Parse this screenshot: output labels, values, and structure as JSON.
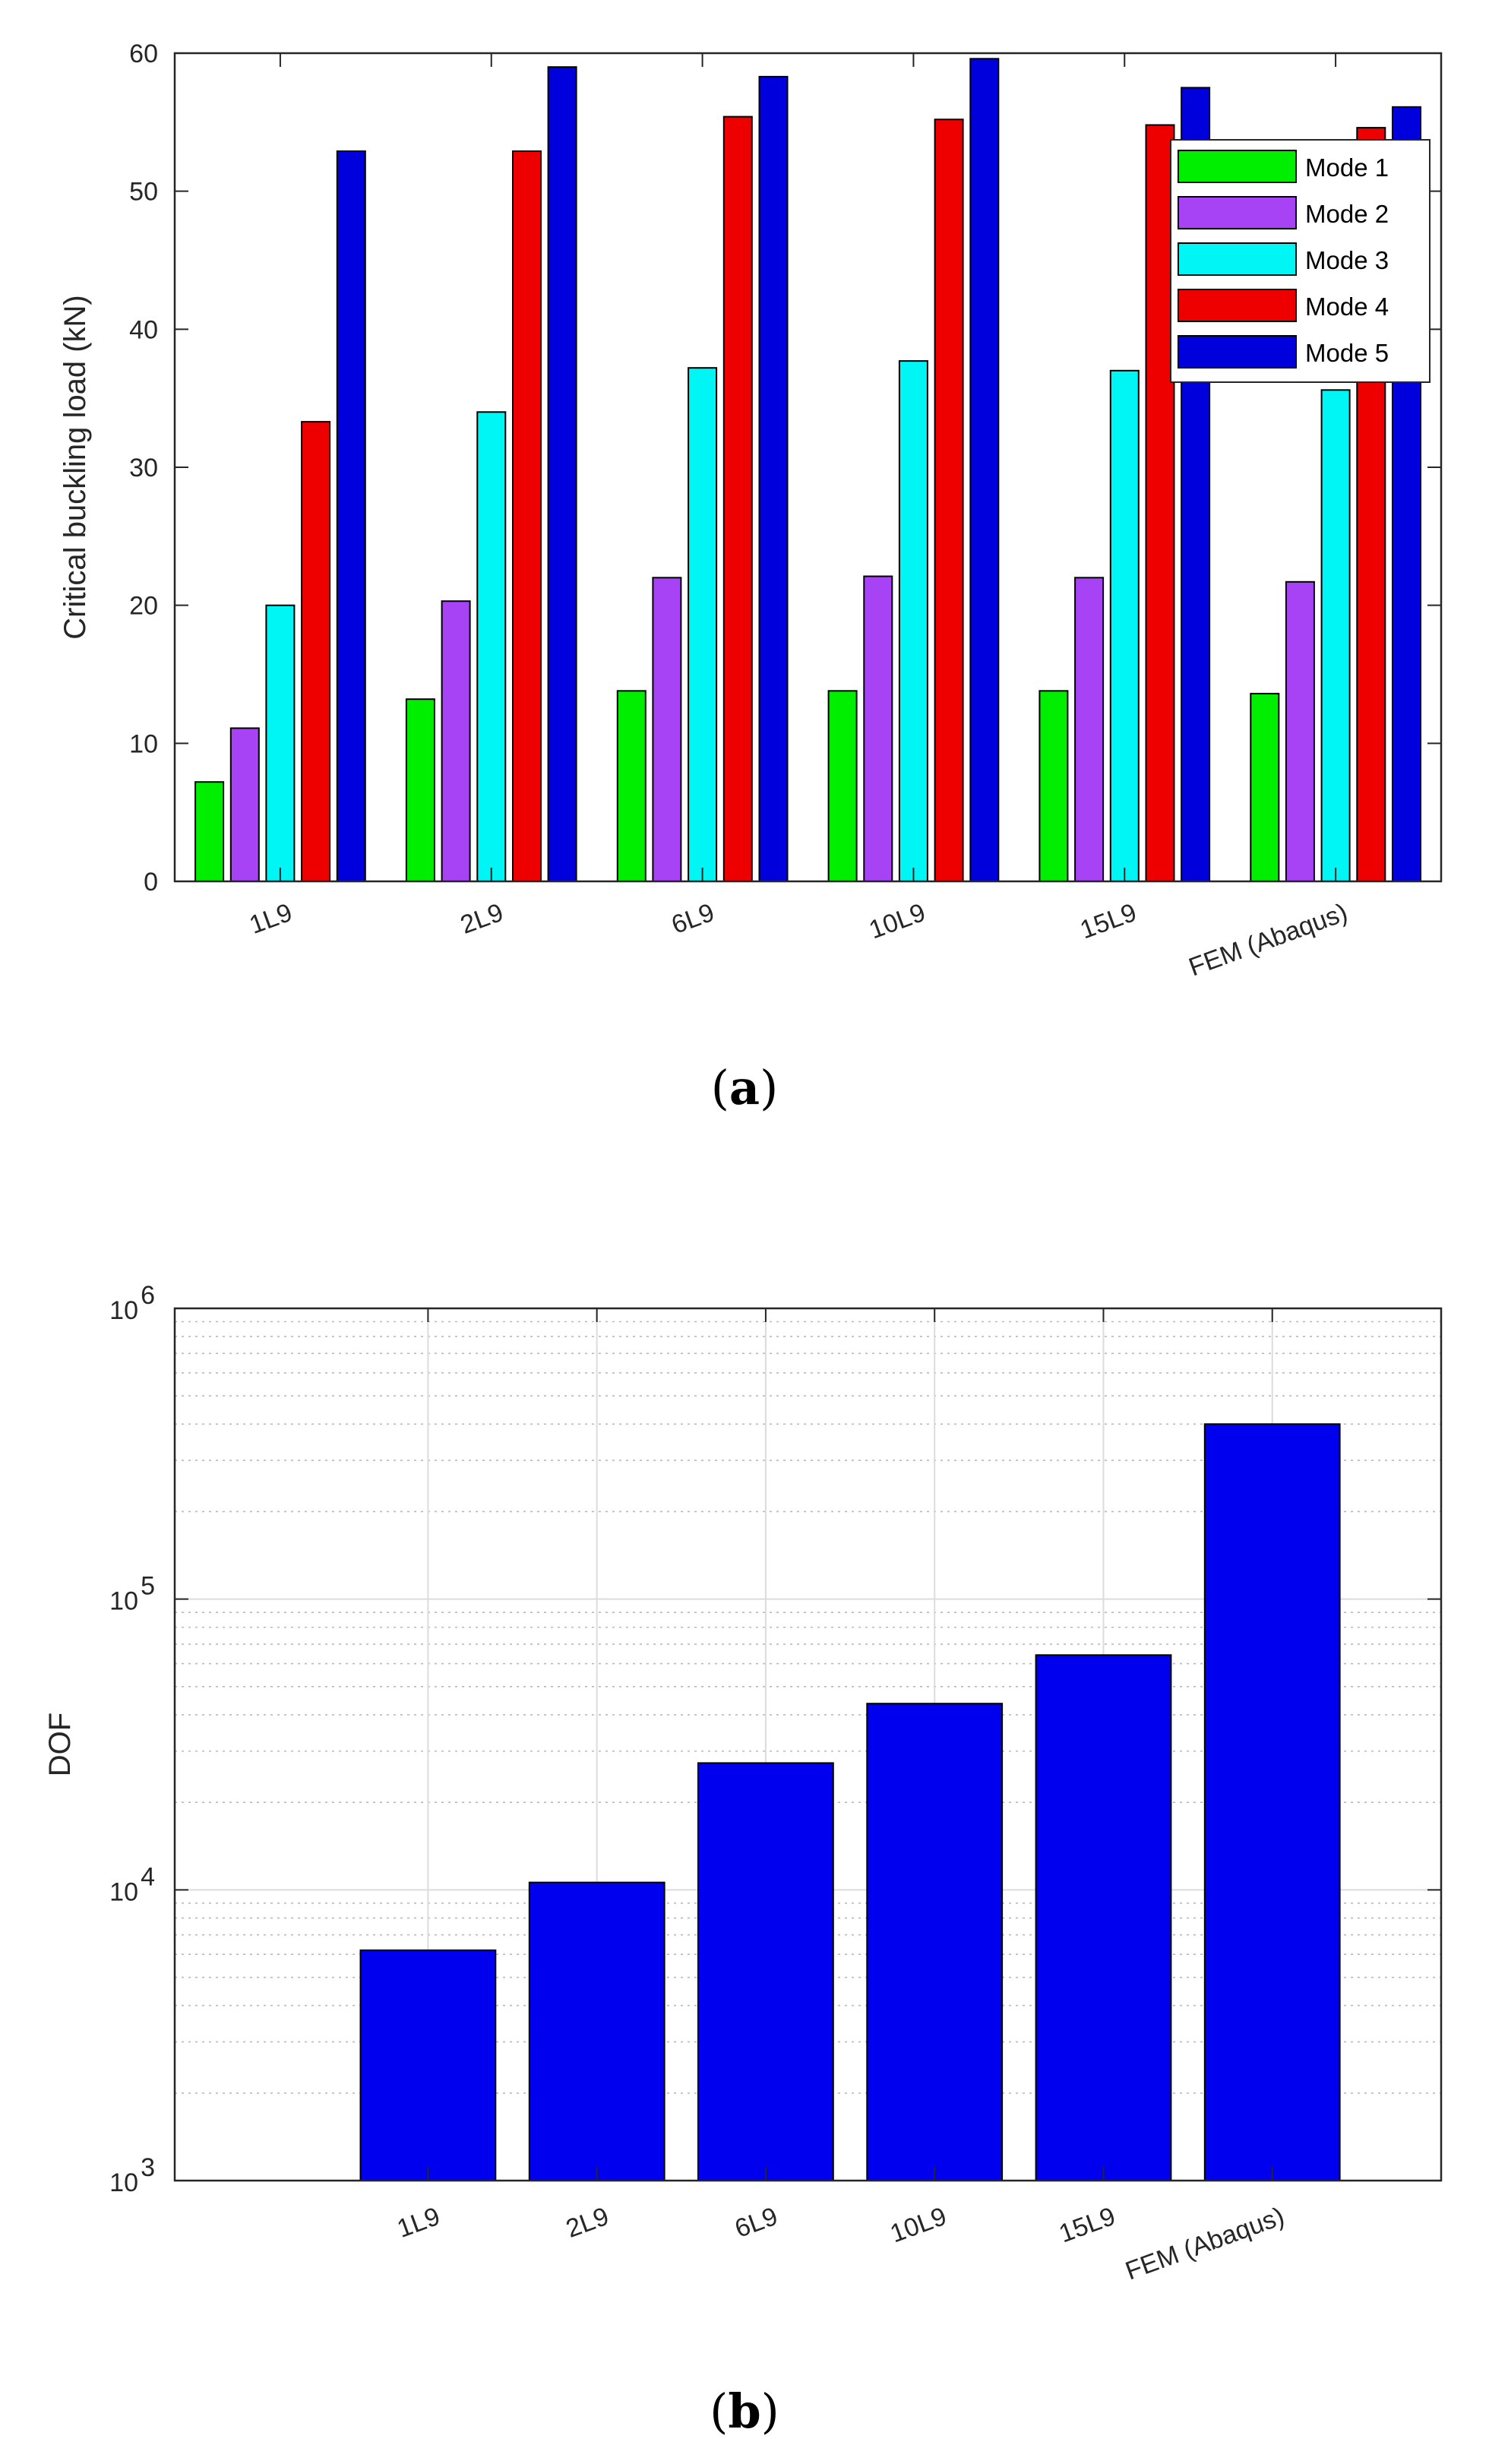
{
  "figure": {
    "caption_a": {
      "open": "(",
      "letter": "a",
      "close": ")"
    },
    "caption_b": {
      "open": "(",
      "letter": "b",
      "close": ")"
    }
  },
  "chart_data": [
    {
      "type": "bar",
      "panel": "a",
      "title": "",
      "xlabel": "",
      "ylabel": "Critical buckling load (kN)",
      "ylim": [
        0,
        60
      ],
      "yticks": [
        0,
        10,
        20,
        30,
        40,
        50,
        60
      ],
      "grid": false,
      "legend_position": "top-right",
      "categories": [
        "1L9",
        "2L9",
        "6L9",
        "10L9",
        "15L9",
        "FEM (Abaqus)"
      ],
      "series": [
        {
          "name": "Mode 1",
          "color": "#00ee00",
          "values": [
            7.2,
            13.2,
            13.8,
            13.8,
            13.8,
            13.6
          ]
        },
        {
          "name": "Mode 2",
          "color": "#a742f5",
          "values": [
            11.1,
            20.3,
            22.0,
            22.1,
            22.0,
            21.7
          ]
        },
        {
          "name": "Mode 3",
          "color": "#00f5f5",
          "values": [
            20.0,
            34.0,
            37.2,
            37.7,
            37.0,
            35.6
          ]
        },
        {
          "name": "Mode 4",
          "color": "#ee0000",
          "values": [
            33.3,
            52.9,
            55.4,
            55.2,
            54.8,
            54.6
          ]
        },
        {
          "name": "Mode 5",
          "color": "#0000dd",
          "values": [
            52.9,
            59.0,
            58.3,
            59.6,
            57.5,
            56.1
          ]
        }
      ]
    },
    {
      "type": "bar",
      "panel": "b",
      "title": "",
      "xlabel": "",
      "ylabel": "DOF",
      "yscale": "log",
      "ylim": [
        1000,
        1000000
      ],
      "ytick_labels": [
        {
          "base": "10",
          "exp": "3"
        },
        {
          "base": "10",
          "exp": "4"
        },
        {
          "base": "10",
          "exp": "5"
        },
        {
          "base": "10",
          "exp": "6"
        }
      ],
      "grid": true,
      "bar_color": "#0000ee",
      "categories": [
        "1L9",
        "2L9",
        "6L9",
        "10L9",
        "15L9",
        "FEM (Abaqus)"
      ],
      "values": [
        6200,
        10600,
        27300,
        43700,
        64200,
        400000
      ]
    }
  ]
}
